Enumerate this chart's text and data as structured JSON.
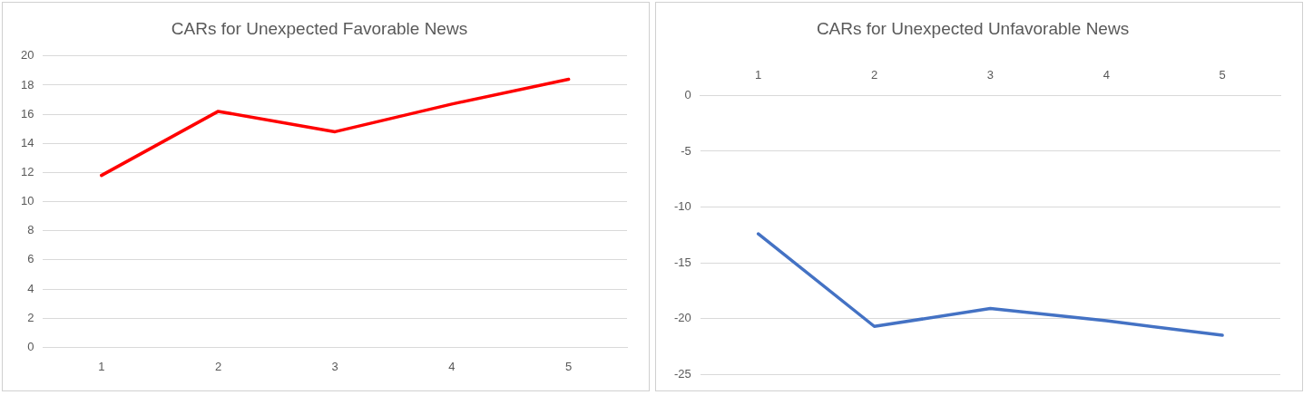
{
  "chart_data": [
    {
      "type": "line",
      "title": "CARs for Unexpected Favorable News",
      "categories": [
        "1",
        "2",
        "3",
        "4",
        "5"
      ],
      "series": [
        {
          "color": "#ff0000",
          "values": [
            11.8,
            16.2,
            14.8,
            16.7,
            18.4
          ]
        }
      ],
      "ylim": [
        0,
        20
      ],
      "yticks": [
        0,
        2,
        4,
        6,
        8,
        10,
        12,
        14,
        16,
        18,
        20
      ],
      "grid": "y",
      "marker": "none"
    },
    {
      "type": "line",
      "title": "CARs for Unexpected Unfavorable News",
      "categories": [
        "1",
        "2",
        "3",
        "4",
        "5"
      ],
      "series": [
        {
          "color": "#4472c4",
          "values": [
            -12.4,
            -20.7,
            -19.1,
            -20.2,
            -21.5
          ]
        }
      ],
      "ylim": [
        -25,
        0
      ],
      "yticks": [
        -25,
        -20,
        -15,
        -10,
        -5,
        0
      ],
      "grid": "y",
      "marker": "none"
    }
  ]
}
